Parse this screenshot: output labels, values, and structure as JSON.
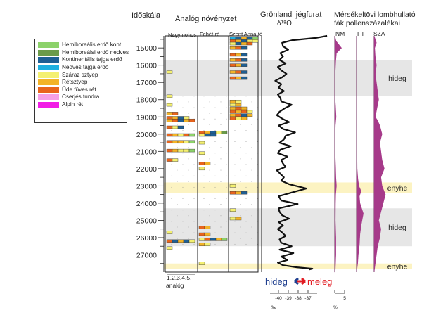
{
  "headers": {
    "timescale": "Időskála",
    "vegetation": "Analóg növényzet",
    "greenland_line1": "Grönlandi jégfurat",
    "greenland_line2": "δ¹⁸O",
    "pollen_line1": "Mérsékeltövi lombhullató",
    "pollen_line2": "fák pollenszázalékai"
  },
  "legend": [
    {
      "label": "Hemiboreális erdő kont.",
      "color": "#8cd26a"
    },
    {
      "label": "Hemiboreálsi erdő nedves",
      "color": "#6b9a4a"
    },
    {
      "label": "Kontinentális tajga erdő",
      "color": "#1f5f94"
    },
    {
      "label": "Nedves tajga erdő",
      "color": "#1fb0e0"
    },
    {
      "label": "Száraz sztyep",
      "color": "#f4f070"
    },
    {
      "label": "Rétsztyep",
      "color": "#f3b327"
    },
    {
      "label": "Üde füves rét",
      "color": "#e8641c"
    },
    {
      "label": "Cserjés tundra",
      "color": "#f6a0e6"
    },
    {
      "label": "Alpin rét",
      "color": "#f21de6"
    }
  ],
  "sites": [
    "Nagymohos",
    "Fehét-ró",
    "Szent Anna-tó"
  ],
  "analog_axis_label": "1.2.3.4.5.",
  "analog_word": "analóg",
  "pollen_columns": [
    "NM",
    "FT",
    "SZA"
  ],
  "bands": [
    {
      "label": "hideg",
      "from": 15700,
      "to": 17800,
      "type": "cold"
    },
    {
      "label": "enyhe",
      "from": 22800,
      "to": 23400,
      "type": "mild"
    },
    {
      "label": "hideg",
      "from": 24300,
      "to": 26500,
      "type": "cold"
    },
    {
      "label": "enyhe",
      "from": 27500,
      "to": 27800,
      "type": "mild"
    }
  ],
  "arrow_text": {
    "cold": "hideg",
    "warm": "meleg"
  },
  "d18o_scale": {
    "ticks": [
      "-40",
      "-39",
      "-38",
      "-37"
    ],
    "unit": "‰"
  },
  "pollen_scale": {
    "tick": "5",
    "unit": "%"
  },
  "colors": {
    "cold_band": "#e6e6e6",
    "mild_band": "#fcf3c2",
    "pollen_fill": "#a63a8a",
    "cold_arrow": "#1f3f8f",
    "warm_arrow": "#e21b22"
  },
  "chart_data": {
    "type": "line",
    "y_axis": {
      "label": "Időskála",
      "ticks": [
        15000,
        16000,
        17000,
        18000,
        19000,
        20000,
        21000,
        22000,
        23000,
        24000,
        25000,
        26000,
        27000
      ],
      "range": [
        14300,
        28000
      ]
    },
    "series": [
      {
        "name": "δ¹⁸O",
        "x": [
          -34.9,
          -36.2,
          -38.9,
          -40.1,
          -40.0,
          -39.4,
          -40.3,
          -40.0,
          -40.4,
          -39.7,
          -40.6,
          -40.2,
          -39.6,
          -40.1,
          -40.9,
          -40.2,
          -40.5,
          -39.9,
          -40.6,
          -40.3,
          -40.2,
          -39.0,
          -39.8,
          -40.4,
          -40.7,
          -40.1,
          -39.3,
          -40.5,
          -40.0,
          -38.6,
          -39.7,
          -39.9,
          -40.4,
          -39.1,
          -40.3,
          -40.6,
          -39.5,
          -40.2,
          -40.0,
          -39.7,
          -40.7,
          -40.3,
          -39.9,
          -40.2,
          -39.3,
          -37.3,
          -39.1,
          -40.5,
          -40.2,
          -38.3,
          -40.5,
          -40.4,
          -40.1,
          -39.3,
          -40.5,
          -40.0,
          -40.6,
          -40.1,
          -39.7,
          -40.4,
          -40.2,
          -39.0,
          -40.4,
          -38.8,
          -40.2,
          -39.5,
          -40.6,
          -40.0,
          -38.4,
          -36.6,
          -37.0
        ],
        "y": [
          14300,
          14420,
          14550,
          14700,
          14900,
          15100,
          15300,
          15500,
          15700,
          15900,
          16100,
          16300,
          16500,
          16700,
          16900,
          17100,
          17300,
          17500,
          17700,
          17900,
          18100,
          18300,
          18500,
          18700,
          18900,
          19100,
          19300,
          19500,
          19700,
          19900,
          20100,
          20300,
          20500,
          20700,
          20900,
          21100,
          21300,
          21500,
          21700,
          21900,
          22100,
          22300,
          22500,
          22700,
          22900,
          23150,
          23400,
          23600,
          23850,
          24050,
          24300,
          24500,
          24700,
          24900,
          25100,
          25300,
          25500,
          25700,
          25900,
          26100,
          26300,
          26500,
          26700,
          26900,
          27100,
          27300,
          27450,
          27600,
          27720,
          27800,
          27850
        ]
      },
      {
        "name": "NM",
        "values_y": [
          14300,
          14600,
          15000,
          15300,
          15800,
          16500,
          17000,
          17500,
          18000,
          18500,
          19000,
          19500,
          20000,
          21000,
          21500,
          22000,
          22500,
          23000,
          23500,
          24000,
          25000,
          26000,
          27000,
          28000
        ],
        "values_pct": [
          0,
          1.2,
          6,
          1.5,
          0.8,
          0.3,
          0.2,
          0.2,
          0.3,
          0.8,
          1.2,
          0.5,
          0.3,
          0.3,
          0.5,
          0.8,
          1.0,
          1.5,
          0.8,
          0.6,
          0.5,
          1.0,
          1.0,
          0.4
        ]
      },
      {
        "name": "FT",
        "values_y": [
          14300,
          15000,
          18000,
          19500,
          20500,
          22000,
          22600,
          23000,
          23300,
          23600,
          24000,
          24600,
          25300,
          25800,
          26400,
          27000,
          27500,
          28000
        ],
        "values_pct": [
          0,
          0,
          0,
          0.2,
          0.3,
          0.5,
          1.2,
          2,
          4,
          2.5,
          3,
          6,
          4,
          3,
          2.5,
          1.5,
          1,
          0
        ]
      },
      {
        "name": "SZA",
        "values_y": [
          14300,
          14700,
          15000,
          15500,
          16000,
          16500,
          17000,
          17500,
          18000,
          18500,
          19000,
          19200,
          19500,
          20000,
          20500,
          21000,
          21500,
          22000,
          22500,
          23000,
          23500,
          24000,
          24500,
          25000,
          25500,
          26000,
          26500,
          27000,
          27500,
          28000
        ],
        "values_pct": [
          0,
          2,
          0.5,
          1,
          2,
          1,
          2,
          3,
          4,
          2.5,
          1,
          3,
          5,
          7,
          5,
          6,
          7,
          9,
          6,
          7,
          10,
          8,
          6,
          4,
          6,
          5,
          3,
          2,
          1,
          0
        ]
      }
    ]
  },
  "vegetation_samples": {
    "Nagymohos": [
      {
        "y": 16400,
        "colors": [
          "#f4f070"
        ]
      },
      {
        "y": 17800,
        "colors": [
          "#f4f070"
        ]
      },
      {
        "y": 18300,
        "colors": [
          "#f4f070"
        ]
      },
      {
        "y": 18800,
        "colors": [
          "#f3b327",
          "#e8641c"
        ]
      },
      {
        "y": 19050,
        "colors": [
          "#e8641c",
          "#f3b327",
          "#1f5f94",
          "#f4f070"
        ]
      },
      {
        "y": 19200,
        "colors": [
          "#f3b327",
          "#e8641c",
          "#1f5f94",
          "#f3b327",
          "#e8641c"
        ]
      },
      {
        "y": 19600,
        "colors": [
          "#e8641c",
          "#f4f070",
          "#1f5f94"
        ]
      },
      {
        "y": 20050,
        "colors": [
          "#e8641c",
          "#f3b327",
          "#f4f070",
          "#e8641c",
          "#8cd26a"
        ]
      },
      {
        "y": 20450,
        "colors": [
          "#e8641c",
          "#f3b327",
          "#f3b327",
          "#f4f070",
          "#8cd26a"
        ]
      },
      {
        "y": 20950,
        "colors": [
          "#e8641c",
          "#f3b327",
          "#f4f070",
          "#f4f070",
          "#8cd26a"
        ]
      },
      {
        "y": 21500,
        "colors": [
          "#e8641c",
          "#f4f070"
        ]
      },
      {
        "y": 25700,
        "colors": [
          "#f4f070"
        ]
      },
      {
        "y": 26200,
        "colors": [
          "#e8641c",
          "#1f5f94",
          "#f3b327",
          "#1f5f94",
          "#f4f070"
        ]
      },
      {
        "y": 26600,
        "colors": [
          "#f4f070"
        ]
      }
    ],
    "Fehét-ró": [
      {
        "y": 19900,
        "colors": [
          "#e8641c",
          "#f3b327",
          "#1f5f94",
          "#f4f070",
          "#6b9a4a"
        ]
      },
      {
        "y": 20050,
        "colors": [
          "#f4f070",
          "#1f5f94",
          "#1f5f94"
        ]
      },
      {
        "y": 20500,
        "colors": [
          "#f4f070"
        ]
      },
      {
        "y": 21100,
        "colors": [
          "#f4f070"
        ]
      },
      {
        "y": 21700,
        "colors": [
          "#e8641c",
          "#f3b327"
        ]
      },
      {
        "y": 22000,
        "colors": [
          "#f4f070"
        ]
      },
      {
        "y": 25400,
        "colors": [
          "#e8641c",
          "#f3b327"
        ]
      },
      {
        "y": 25800,
        "colors": [
          "#e8641c",
          "#f3b327"
        ]
      },
      {
        "y": 26100,
        "colors": [
          "#f4f070",
          "#e8641c",
          "#1f5f94",
          "#f3b327",
          "#8cd26a"
        ]
      },
      {
        "y": 26400,
        "colors": [
          "#f3b327",
          "#f4f070"
        ]
      },
      {
        "y": 27500,
        "colors": [
          "#f4f070"
        ]
      }
    ],
    "Szent Anna-tó": [
      {
        "y": 14450,
        "colors": [
          "#1fb0e0",
          "#1f5f94",
          "#f3b327",
          "#1f5f94",
          "#8cd26a"
        ]
      },
      {
        "y": 14600,
        "colors": [
          "#e8641c",
          "#f3b327",
          "#1f5f94",
          "#f4f070",
          "#f4f070"
        ]
      },
      {
        "y": 14750,
        "colors": [
          "#f4f070",
          "#1f5f94",
          "#f3b327",
          "#e8641c"
        ]
      },
      {
        "y": 15000,
        "colors": [
          "#f3b327",
          "#e8641c",
          "#1f5f94"
        ]
      },
      {
        "y": 15400,
        "colors": [
          "#e8641c",
          "#f3b327",
          "#1f5f94"
        ]
      },
      {
        "y": 15700,
        "colors": [
          "#f3b327",
          "#e8641c",
          "#1f5f94"
        ]
      },
      {
        "y": 16000,
        "colors": [
          "#e8641c",
          "#f3b327",
          "#1f5f94"
        ]
      },
      {
        "y": 16400,
        "colors": [
          "#f3b327",
          "#e8641c",
          "#1f5f94"
        ]
      },
      {
        "y": 16750,
        "colors": [
          "#e8641c",
          "#f3b327",
          "#1f5f94"
        ]
      },
      {
        "y": 18100,
        "colors": [
          "#f3b327",
          "#f4f070"
        ]
      },
      {
        "y": 18300,
        "colors": [
          "#f4f070",
          "#f3b327"
        ]
      },
      {
        "y": 18500,
        "colors": [
          "#f3b327",
          "#e8641c",
          "#f3b327"
        ]
      },
      {
        "y": 18700,
        "colors": [
          "#e8641c",
          "#f3b327",
          "#e8641c",
          "#f4f070"
        ]
      },
      {
        "y": 18900,
        "colors": [
          "#f3b327",
          "#e8641c",
          "#1f5f94",
          "#f3b327"
        ]
      },
      {
        "y": 19100,
        "colors": [
          "#e8641c",
          "#f4f070",
          "#f3b327"
        ]
      },
      {
        "y": 23000,
        "colors": [
          "#f4f070"
        ]
      },
      {
        "y": 23400,
        "colors": [
          "#e8641c",
          "#f3b327",
          "#1f5f94"
        ]
      },
      {
        "y": 24400,
        "colors": [
          "#f4f070"
        ]
      },
      {
        "y": 24900,
        "colors": [
          "#f4f070",
          "#f3b327"
        ]
      }
    ]
  }
}
